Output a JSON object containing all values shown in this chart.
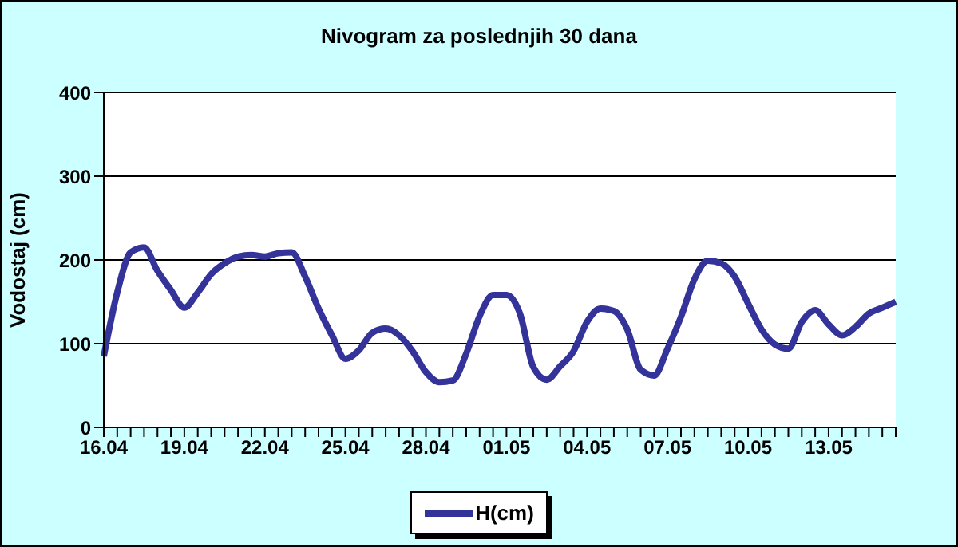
{
  "chart_data": {
    "type": "line",
    "title": "Nivogram za poslednjih 30 dana",
    "ylabel": "Vodostaj (cm)",
    "categories": [
      "16.04",
      null,
      null,
      null,
      null,
      null,
      "19.04",
      null,
      null,
      null,
      null,
      null,
      "22.04",
      null,
      null,
      null,
      null,
      null,
      "25.04",
      null,
      null,
      null,
      null,
      null,
      "28.04",
      null,
      null,
      null,
      null,
      null,
      "01.05",
      null,
      null,
      null,
      null,
      null,
      "04.05",
      null,
      null,
      null,
      null,
      null,
      "07.05",
      null,
      null,
      null,
      null,
      null,
      "10.05",
      null,
      null,
      null,
      null,
      null,
      "13.05",
      null,
      null,
      null,
      null,
      null
    ],
    "series": [
      {
        "name": "H(cm)",
        "color": "#333399",
        "values": [
          85,
          161,
          209,
          215,
          187,
          164,
          143,
          161,
          183,
          196,
          204,
          206,
          204,
          208,
          209,
          180,
          142,
          110,
          82,
          92,
          113,
          118,
          110,
          91,
          66,
          54,
          56,
          88,
          133,
          158,
          158,
          136,
          72,
          57,
          73,
          91,
          126,
          142,
          139,
          117,
          69,
          62,
          94,
          132,
          177,
          199,
          196,
          180,
          148,
          117,
          99,
          94,
          126,
          140,
          123,
          110,
          120,
          136,
          143,
          150
        ]
      }
    ],
    "ylim": [
      0,
      400
    ],
    "yticks": [
      0,
      100,
      200,
      300,
      400
    ],
    "grid": "y",
    "legend": "bottom",
    "marker": "none",
    "line_style": "solid"
  }
}
